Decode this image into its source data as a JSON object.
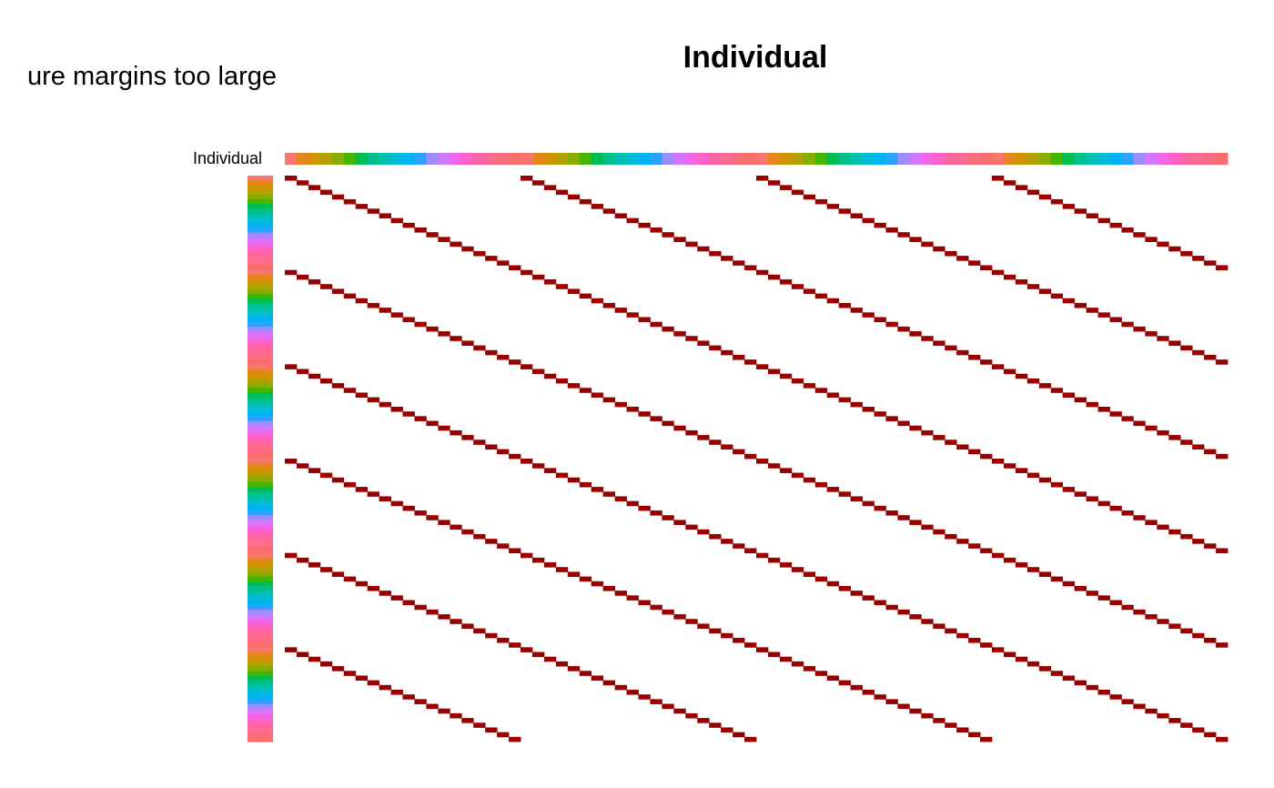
{
  "error_message": "ure margins too large",
  "chart_data": {
    "type": "heatmap",
    "title": "Individual",
    "annotation_label": "Individual",
    "n_rows": 120,
    "n_cols": 80,
    "period": 20,
    "hit_color": "#990000",
    "background_color": "#ffffff",
    "annotation_palette": [
      "#F8766D",
      "#E7851E",
      "#D09400",
      "#B2A100",
      "#89AC00",
      "#45B500",
      "#00BC51",
      "#00C087",
      "#00C0B2",
      "#00BCD6",
      "#00B3F2",
      "#29A3FF",
      "#9C8DFF",
      "#D277FF",
      "#F166E8",
      "#FF61C7",
      "#FF65A0",
      "#FF6C91",
      "#FF6C7E",
      "#FB6E6E"
    ],
    "description_of_cells": "cell (r,c) is colored when r mod 20 == c mod 20"
  }
}
